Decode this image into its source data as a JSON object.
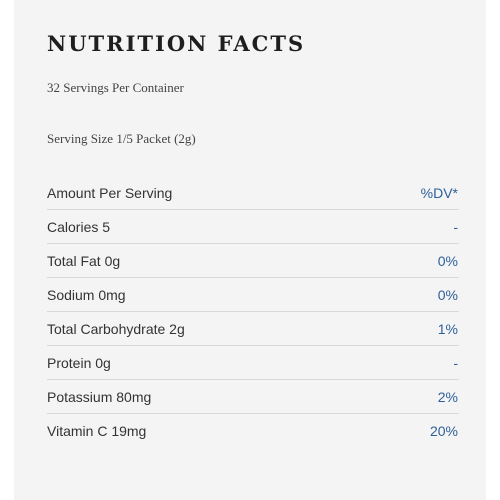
{
  "title": "NUTRITION FACTS",
  "servings_per_container": "32 Servings Per Container",
  "serving_size": "Serving Size 1/5 Packet (2g)",
  "colors": {
    "panel_background": "#f4f4f4",
    "title_text": "#1e1e1e",
    "label_text": "#333333",
    "value_text": "#2e5f99",
    "divider": "#d8d8d8"
  },
  "table": {
    "header": {
      "label": "Amount Per Serving",
      "value": "%DV*"
    },
    "rows": [
      {
        "label": "Calories 5",
        "value": "-"
      },
      {
        "label": "Total Fat 0g",
        "value": "0%"
      },
      {
        "label": "Sodium 0mg",
        "value": "0%"
      },
      {
        "label": "Total Carbohydrate 2g",
        "value": "1%"
      },
      {
        "label": "Protein 0g",
        "value": "-"
      },
      {
        "label": "Potassium 80mg",
        "value": "2%"
      },
      {
        "label": "Vitamin C 19mg",
        "value": "20%"
      }
    ]
  }
}
